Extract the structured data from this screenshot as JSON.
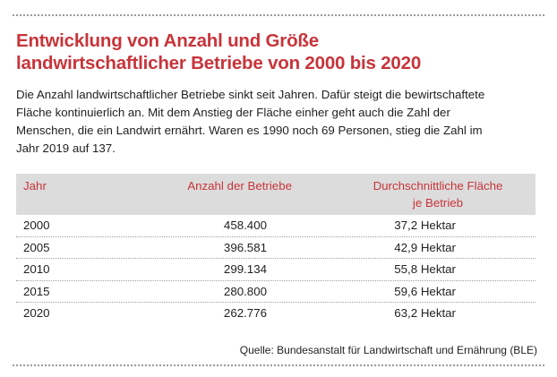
{
  "title_lines": [
    "Entwicklung von Anzahl und Größe",
    "landwirtschaftlicher Betriebe von 2000 bis 2020"
  ],
  "intro_lines": [
    "Die Anzahl landwirtschaftlicher Betriebe sinkt seit Jahren. Dafür steigt die bewirtschaftete",
    "Fläche kontinuierlich an. Mit dem Anstieg der Fläche einher geht auch die Zahl der",
    "Menschen, die ein Landwirt ernährt. Waren es 1990 noch 69 Personen, stieg die Zahl im",
    "Jahr 2019 auf 137."
  ],
  "table": {
    "headers": {
      "year": "Jahr",
      "count": "Anzahl der Betriebe",
      "area_line1": "Durchschnittliche Fläche",
      "area_line2": "je Betrieb"
    },
    "rows": [
      {
        "year": "2000",
        "count": "458.400",
        "area": "37,2 Hektar"
      },
      {
        "year": "2005",
        "count": "396.581",
        "area": "42,9 Hektar"
      },
      {
        "year": "2010",
        "count": "299.134",
        "area": "55,8 Hektar"
      },
      {
        "year": "2015",
        "count": "280.800",
        "area": "59,6 Hektar"
      },
      {
        "year": "2020",
        "count": "262.776",
        "area": "63,2 Hektar"
      }
    ]
  },
  "source": "Quelle: Bundesanstalt für Landwirtschaft und Ernährung (BLE)",
  "colors": {
    "accent_red": "#c8343a",
    "header_bg": "#dcdcdc",
    "text": "#1f1f1f"
  }
}
